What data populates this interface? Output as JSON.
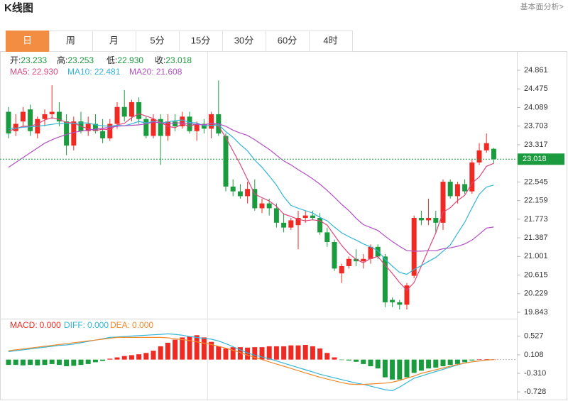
{
  "header": {
    "title": "K线图",
    "link": "基本面分析>"
  },
  "tabs": [
    "日",
    "周",
    "月",
    "5分",
    "15分",
    "30分",
    "60分",
    "4时"
  ],
  "active_tab": 0,
  "chart_data": [
    {
      "type": "candlestick",
      "ohlc": [
        {
          "label": "开:",
          "value": "23.233",
          "color": "#1a9c3e"
        },
        {
          "label": "高:",
          "value": "23.253",
          "color": "#1a9c3e"
        },
        {
          "label": "低:",
          "value": "22.930",
          "color": "#1a9c3e"
        },
        {
          "label": "收:",
          "value": "23.018",
          "color": "#1a9c3e"
        }
      ],
      "up_color": "#ee2a22",
      "down_color": "#1a9c3e",
      "candles": [
        [
          24.0,
          24.1,
          23.45,
          23.55
        ],
        [
          23.6,
          23.95,
          23.5,
          23.75
        ],
        [
          23.8,
          24.1,
          23.7,
          24.0
        ],
        [
          24.05,
          24.15,
          23.5,
          23.6
        ],
        [
          23.55,
          23.9,
          23.45,
          23.85
        ],
        [
          23.85,
          24.05,
          23.7,
          23.95
        ],
        [
          23.95,
          24.55,
          23.85,
          24.0
        ],
        [
          24.0,
          24.2,
          23.7,
          23.8
        ],
        [
          23.8,
          23.95,
          23.1,
          23.3
        ],
        [
          23.3,
          23.9,
          23.2,
          23.8
        ],
        [
          23.8,
          24.0,
          23.55,
          23.6
        ],
        [
          23.6,
          23.9,
          23.5,
          23.75
        ],
        [
          23.75,
          23.95,
          23.55,
          23.6
        ],
        [
          23.6,
          23.85,
          23.35,
          23.45
        ],
        [
          23.45,
          23.85,
          23.4,
          23.75
        ],
        [
          23.75,
          24.2,
          23.65,
          24.1
        ],
        [
          24.1,
          24.45,
          23.8,
          23.9
        ],
        [
          23.9,
          24.25,
          23.8,
          24.2
        ],
        [
          24.2,
          24.3,
          23.75,
          23.85
        ],
        [
          23.85,
          23.9,
          23.45,
          23.5
        ],
        [
          23.5,
          23.95,
          23.45,
          23.85
        ],
        [
          23.85,
          23.95,
          22.9,
          23.5
        ],
        [
          23.5,
          23.95,
          23.4,
          23.8
        ],
        [
          23.8,
          23.95,
          23.6,
          23.7
        ],
        [
          23.7,
          24.0,
          23.65,
          23.9
        ],
        [
          23.9,
          24.0,
          23.55,
          23.6
        ],
        [
          23.6,
          23.8,
          23.4,
          23.75
        ],
        [
          23.75,
          23.85,
          23.55,
          23.65
        ],
        [
          23.65,
          24.0,
          23.45,
          23.95
        ],
        [
          23.95,
          24.65,
          23.5,
          23.55
        ],
        [
          23.5,
          23.55,
          22.35,
          22.45
        ],
        [
          22.45,
          22.6,
          22.25,
          22.35
        ],
        [
          22.35,
          22.5,
          22.2,
          22.25
        ],
        [
          22.25,
          22.55,
          22.1,
          22.4
        ],
        [
          22.4,
          22.6,
          21.95,
          22.0
        ],
        [
          22.0,
          22.2,
          21.9,
          22.1
        ],
        [
          22.1,
          22.2,
          21.85,
          22.0
        ],
        [
          22.0,
          22.1,
          21.6,
          21.7
        ],
        [
          21.7,
          21.9,
          21.5,
          21.6
        ],
        [
          21.6,
          21.8,
          21.55,
          21.75
        ],
        [
          21.65,
          21.95,
          21.15,
          21.8
        ],
        [
          21.8,
          21.95,
          21.7,
          21.85
        ],
        [
          21.85,
          21.95,
          21.75,
          21.8
        ],
        [
          21.8,
          21.9,
          21.45,
          21.5
        ],
        [
          21.5,
          21.6,
          21.2,
          21.3
        ],
        [
          21.3,
          21.35,
          20.7,
          20.75
        ],
        [
          20.65,
          20.85,
          20.45,
          20.8
        ],
        [
          20.8,
          21.0,
          20.75,
          20.95
        ],
        [
          20.95,
          21.15,
          20.8,
          20.9
        ],
        [
          20.9,
          21.05,
          20.75,
          20.95
        ],
        [
          20.95,
          21.25,
          20.85,
          21.2
        ],
        [
          21.2,
          21.25,
          20.95,
          21.0
        ],
        [
          21.0,
          21.05,
          19.95,
          20.05
        ],
        [
          20.1,
          20.15,
          19.95,
          20.05
        ],
        [
          20.05,
          20.1,
          19.9,
          20.0
        ],
        [
          20.0,
          20.45,
          19.9,
          20.4
        ],
        [
          20.6,
          21.85,
          20.55,
          21.8
        ],
        [
          21.8,
          21.95,
          21.65,
          21.75
        ],
        [
          21.75,
          22.2,
          21.65,
          21.8
        ],
        [
          21.8,
          21.95,
          21.5,
          21.7
        ],
        [
          21.7,
          22.6,
          21.55,
          22.55
        ],
        [
          22.55,
          22.6,
          22.2,
          22.25
        ],
        [
          22.25,
          22.55,
          22.1,
          22.5
        ],
        [
          22.5,
          22.6,
          22.3,
          22.35
        ],
        [
          22.35,
          23.0,
          22.3,
          22.95
        ],
        [
          22.95,
          23.35,
          22.9,
          23.2
        ],
        [
          23.2,
          23.55,
          23.15,
          23.35
        ],
        [
          23.233,
          23.253,
          22.93,
          23.018
        ]
      ],
      "series": [
        {
          "name": "MA5:",
          "current": "22.930",
          "color": "#e0457b",
          "values": [
            23.6,
            23.65,
            23.7,
            23.7,
            23.75,
            23.83,
            23.88,
            23.84,
            23.78,
            23.77,
            23.7,
            23.65,
            23.61,
            23.64,
            23.63,
            23.73,
            23.76,
            23.88,
            23.96,
            23.91,
            23.86,
            23.78,
            23.7,
            23.67,
            23.75,
            23.7,
            23.75,
            23.72,
            23.77,
            23.7,
            23.47,
            23.19,
            22.91,
            22.6,
            22.29,
            22.22,
            22.15,
            22.04,
            21.88,
            21.83,
            21.77,
            21.74,
            21.76,
            21.74,
            21.65,
            21.44,
            21.23,
            21.06,
            20.94,
            20.87,
            20.96,
            21.0,
            20.82,
            20.65,
            20.46,
            20.3,
            20.46,
            20.8,
            21.15,
            21.49,
            21.92,
            22.01,
            22.16,
            22.27,
            22.52,
            22.65,
            22.87,
            22.93
          ]
        },
        {
          "name": "MA10:",
          "current": "22.481",
          "color": "#33b5d6",
          "values": [
            23.65,
            23.66,
            23.68,
            23.69,
            23.7,
            23.72,
            23.74,
            23.76,
            23.76,
            23.76,
            23.77,
            23.77,
            23.73,
            23.71,
            23.7,
            23.72,
            23.71,
            23.75,
            23.8,
            23.77,
            23.8,
            23.77,
            23.79,
            23.82,
            23.83,
            23.78,
            23.77,
            23.71,
            23.72,
            23.73,
            23.59,
            23.47,
            23.32,
            23.19,
            23.0,
            22.85,
            22.67,
            22.48,
            22.24,
            22.06,
            22.0,
            21.95,
            21.9,
            21.81,
            21.74,
            21.61,
            21.49,
            21.41,
            21.34,
            21.26,
            21.2,
            21.12,
            20.94,
            20.8,
            20.67,
            20.63,
            20.73,
            20.81,
            20.9,
            20.98,
            21.11,
            21.24,
            21.48,
            21.71,
            22.01,
            22.29,
            22.44,
            22.48
          ]
        },
        {
          "name": "MA20:",
          "current": "21.608",
          "color": "#b24fc4",
          "values": [
            22.85,
            22.95,
            23.05,
            23.15,
            23.25,
            23.35,
            23.42,
            23.48,
            23.53,
            23.57,
            23.6,
            23.62,
            23.64,
            23.66,
            23.68,
            23.7,
            23.71,
            23.72,
            23.73,
            23.75,
            23.79,
            23.77,
            23.76,
            23.77,
            23.77,
            23.75,
            23.74,
            23.73,
            23.76,
            23.75,
            23.7,
            23.62,
            23.56,
            23.51,
            23.42,
            23.32,
            23.22,
            23.1,
            22.98,
            22.9,
            22.8,
            22.71,
            22.61,
            22.5,
            22.37,
            22.23,
            22.08,
            21.95,
            21.79,
            21.66,
            21.6,
            21.54,
            21.42,
            21.31,
            21.21,
            21.12,
            21.11,
            21.11,
            21.12,
            21.12,
            21.16,
            21.18,
            21.21,
            21.26,
            21.34,
            21.46,
            21.59,
            21.61
          ]
        }
      ],
      "last_price": 23.018,
      "last_color": "#1a9c3e",
      "ylim": [
        19.74,
        25.244
      ],
      "yticks": [
        24.861,
        24.475,
        24.089,
        23.703,
        23.317,
        22.545,
        22.159,
        21.773,
        21.387,
        21.001,
        20.615,
        20.229,
        19.843
      ]
    },
    {
      "type": "macd",
      "series": [
        {
          "name": "MACD:",
          "current": "0.000",
          "color": "#ee2a22",
          "up_color": "#ee2a22",
          "down_color": "#1a9c3e",
          "values": [
            -0.12,
            -0.12,
            -0.13,
            -0.12,
            -0.13,
            -0.12,
            -0.1,
            -0.12,
            -0.15,
            -0.14,
            -0.12,
            -0.1,
            -0.06,
            -0.03,
            0.02,
            0.05,
            0.08,
            0.1,
            0.12,
            0.15,
            0.2,
            0.3,
            0.38,
            0.45,
            0.5,
            0.52,
            0.55,
            0.5,
            0.4,
            0.3,
            0.25,
            0.28,
            0.28,
            0.27,
            0.28,
            0.28,
            0.3,
            0.3,
            0.3,
            0.32,
            0.32,
            0.33,
            0.3,
            0.25,
            0.15,
            0.05,
            -0.01,
            -0.02,
            -0.05,
            -0.1,
            -0.15,
            -0.2,
            -0.4,
            -0.45,
            -0.45,
            -0.4,
            -0.3,
            -0.25,
            -0.2,
            -0.18,
            -0.15,
            -0.12,
            -0.1,
            -0.06,
            -0.02,
            0.01,
            0.01,
            0.0
          ]
        },
        {
          "name": "DIFF:",
          "current": "0.000",
          "color": "#33b5d6",
          "values": [
            0.18,
            0.2,
            0.22,
            0.24,
            0.26,
            0.28,
            0.3,
            0.32,
            0.33,
            0.35,
            0.38,
            0.41,
            0.44,
            0.47,
            0.5,
            0.51,
            0.52,
            0.53,
            0.54,
            0.55,
            0.56,
            0.57,
            0.58,
            0.57,
            0.55,
            0.52,
            0.5,
            0.48,
            0.46,
            0.42,
            0.36,
            0.29,
            0.22,
            0.15,
            0.1,
            0.06,
            0.02,
            -0.03,
            -0.08,
            -0.13,
            -0.18,
            -0.23,
            -0.28,
            -0.33,
            -0.37,
            -0.41,
            -0.45,
            -0.49,
            -0.53,
            -0.56,
            -0.6,
            -0.64,
            -0.68,
            -0.7,
            -0.62,
            -0.52,
            -0.42,
            -0.37,
            -0.32,
            -0.27,
            -0.22,
            -0.17,
            -0.12,
            -0.08,
            -0.05,
            -0.03,
            -0.01,
            0.0
          ]
        },
        {
          "name": "DEA:",
          "current": "0.000",
          "color": "#f0892d",
          "values": [
            0.2,
            0.22,
            0.24,
            0.26,
            0.28,
            0.3,
            0.32,
            0.34,
            0.36,
            0.38,
            0.4,
            0.42,
            0.44,
            0.46,
            0.48,
            0.5,
            0.5,
            0.5,
            0.5,
            0.5,
            0.5,
            0.5,
            0.49,
            0.47,
            0.45,
            0.43,
            0.4,
            0.37,
            0.34,
            0.3,
            0.26,
            0.21,
            0.16,
            0.1,
            0.05,
            0.0,
            -0.05,
            -0.1,
            -0.15,
            -0.2,
            -0.25,
            -0.3,
            -0.35,
            -0.4,
            -0.44,
            -0.48,
            -0.52,
            -0.55,
            -0.56,
            -0.56,
            -0.55,
            -0.54,
            -0.53,
            -0.51,
            -0.47,
            -0.42,
            -0.37,
            -0.31,
            -0.27,
            -0.23,
            -0.19,
            -0.15,
            -0.11,
            -0.08,
            -0.05,
            -0.03,
            -0.01,
            0.0
          ]
        }
      ],
      "ylim": [
        -0.902,
        0.891
      ],
      "yticks": [
        0.527,
        0.108,
        {
          "value": -0.31,
          "label": "-0.310"
        },
        -0.728
      ]
    }
  ]
}
